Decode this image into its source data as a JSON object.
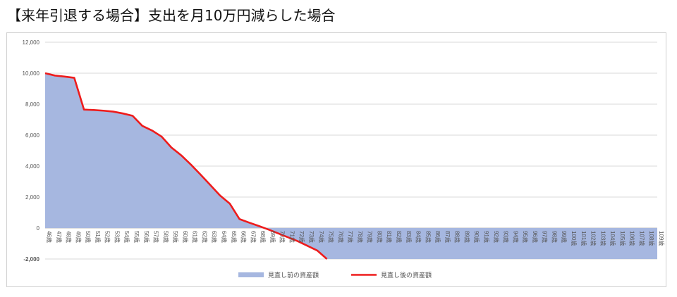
{
  "title": "【来年引退する場合】支出を月10万円減らした場合",
  "chart_data": {
    "type": "area",
    "categories": [
      "46歳",
      "47歳",
      "48歳",
      "49歳",
      "50歳",
      "51歳",
      "52歳",
      "53歳",
      "54歳",
      "55歳",
      "56歳",
      "57歳",
      "58歳",
      "59歳",
      "60歳",
      "61歳",
      "62歳",
      "63歳",
      "64歳",
      "65歳",
      "66歳",
      "67歳",
      "68歳",
      "69歳",
      "70歳",
      "71歳",
      "72歳",
      "73歳",
      "74歳",
      "75歳",
      "76歳",
      "77歳",
      "78歳",
      "79歳",
      "80歳",
      "81歳",
      "82歳",
      "83歳",
      "84歳",
      "85歳",
      "86歳",
      "87歳",
      "88歳",
      "89歳",
      "90歳",
      "91歳",
      "92歳",
      "93歳",
      "94歳",
      "95歳",
      "96歳",
      "97歳",
      "98歳",
      "99歳",
      "100歳",
      "101歳",
      "102歳",
      "103歳",
      "104歳",
      "105歳",
      "106歳",
      "107歳",
      "108歳",
      "109歳"
    ],
    "ylim": [
      -2000,
      12000
    ],
    "yticks": [
      -2000,
      0,
      2000,
      4000,
      6000,
      8000,
      10000,
      12000
    ],
    "ytick_labels": [
      "-2,000",
      "0",
      "2,000",
      "4,000",
      "6,000",
      "8,000",
      "10,000",
      "12,000"
    ],
    "grid": true,
    "legend_position": "bottom",
    "series": [
      {
        "name": "見直し前の資産額",
        "type": "area",
        "color": "#a6b7e0",
        "values": [
          10000,
          9850,
          9780,
          9700,
          7650,
          7620,
          7580,
          7520,
          7400,
          7250,
          6600,
          6300,
          5900,
          5200,
          4700,
          4100,
          3450,
          2780,
          2100,
          1580,
          580,
          350,
          130,
          -100,
          -350,
          -600,
          -850,
          -1150,
          -1450,
          -2000,
          -2000,
          -2000,
          -2000,
          -2000,
          -2000,
          -2000,
          -2000,
          -2000,
          -2000,
          -2000,
          -2000,
          -2000,
          -2000,
          -2000,
          -2000,
          -2000,
          -2000,
          -2000,
          -2000,
          -2000,
          -2000,
          -2000,
          -2000,
          -2000,
          -2000,
          -2000,
          -2000,
          -2000,
          -2000,
          -2000,
          -2000,
          -2000,
          -2000,
          -2000
        ]
      },
      {
        "name": "見直し後の資産額",
        "type": "line",
        "color": "#ee1c1c",
        "values": [
          10000,
          9850,
          9780,
          9700,
          7650,
          7620,
          7580,
          7520,
          7400,
          7250,
          6600,
          6300,
          5900,
          5200,
          4700,
          4100,
          3450,
          2780,
          2100,
          1580,
          580,
          350,
          130,
          -100,
          -350,
          -600,
          -850,
          -1150,
          -1450,
          -2000,
          null,
          null,
          null,
          null,
          null,
          null,
          null,
          null,
          null,
          null,
          null,
          null,
          null,
          null,
          null,
          null,
          null,
          null,
          null,
          null,
          null,
          null,
          null,
          null,
          null,
          null,
          null,
          null,
          null,
          null,
          null,
          null,
          null,
          null
        ]
      }
    ]
  }
}
